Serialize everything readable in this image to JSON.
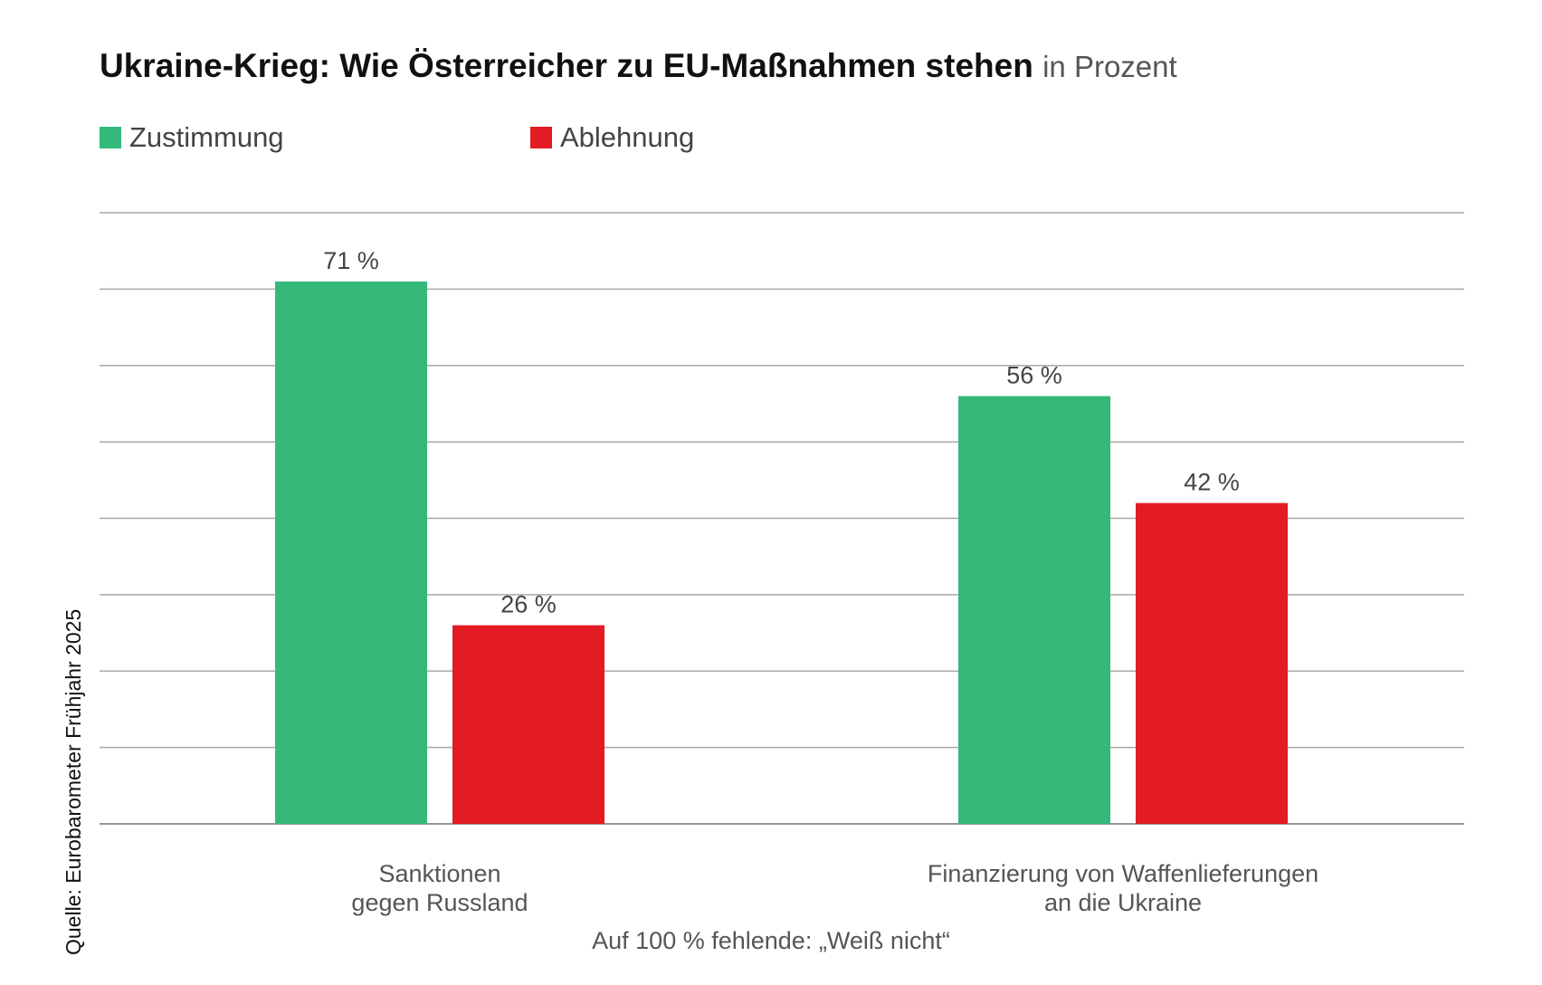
{
  "title": {
    "main": "Ukraine-Krieg: Wie Österreicher zu EU-Maßnahmen stehen",
    "sub": "in Prozent"
  },
  "legend": [
    {
      "label": "Zustimmung",
      "color": "#34b97a"
    },
    {
      "label": "Ablehnung",
      "color": "#e31b23"
    }
  ],
  "source": "Quelle: Eurobarometer Frühjahr 2025",
  "note": "Auf 100 % fehlende: „Weiß nicht“",
  "chart_data": {
    "type": "bar",
    "categories": [
      [
        "Sanktionen",
        "gegen Russland"
      ],
      [
        "Finanzierung von Waffenlieferungen",
        "an die Ukraine"
      ]
    ],
    "series": [
      {
        "name": "Zustimmung",
        "values": [
          71,
          56
        ],
        "labels": [
          "71 %",
          "56 %"
        ],
        "color": "#34b97a"
      },
      {
        "name": "Ablehnung",
        "values": [
          26,
          42
        ],
        "labels": [
          "26 %",
          "42 %"
        ],
        "color": "#e31b23"
      }
    ],
    "ylim": [
      0,
      80
    ],
    "grid": true,
    "legend_position": "top-left"
  }
}
